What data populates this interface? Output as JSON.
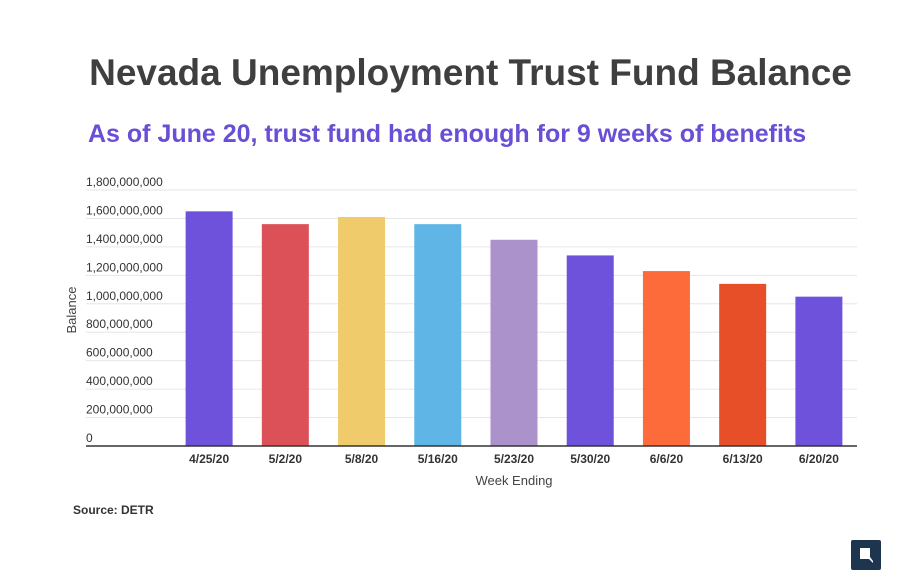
{
  "title": "Nevada Unemployment Trust Fund Balance",
  "subtitle": "As of June 20, trust fund had enough for 9 weeks of benefits",
  "source": "Source: DETR",
  "colors": {
    "subtitle": "#6a4fd6",
    "grid": "#e6e6e6",
    "axis": "#333333"
  },
  "logo_icon": "nevada-state-icon",
  "chart_data": {
    "type": "bar",
    "title": "Nevada Unemployment Trust Fund Balance",
    "subtitle": "As of June 20, trust fund had enough for 9 weeks of benefits",
    "xlabel": "Week Ending",
    "ylabel": "Balance",
    "ylim": [
      0,
      1800000000
    ],
    "yticks": [
      0,
      200000000,
      400000000,
      600000000,
      800000000,
      1000000000,
      1200000000,
      1400000000,
      1600000000,
      1800000000
    ],
    "ytick_labels": [
      "0",
      "200,000,000",
      "400,000,000",
      "600,000,000",
      "800,000,000",
      "1,000,000,000",
      "1,200,000,000",
      "1,400,000,000",
      "1,600,000,000",
      "1,800,000,000"
    ],
    "grid": true,
    "legend": "none",
    "categories": [
      "4/25/20",
      "5/2/20",
      "5/8/20",
      "5/16/20",
      "5/23/20",
      "5/30/20",
      "6/6/20",
      "6/13/20",
      "6/20/20"
    ],
    "values": [
      1650000000,
      1560000000,
      1610000000,
      1560000000,
      1450000000,
      1340000000,
      1230000000,
      1140000000,
      1050000000
    ],
    "bar_colors": [
      "#6e52dc",
      "#dc5158",
      "#f0cb6c",
      "#5fb6e6",
      "#ab92cb",
      "#6e52dc",
      "#fd6b3a",
      "#e64f28",
      "#6e52dc"
    ]
  }
}
